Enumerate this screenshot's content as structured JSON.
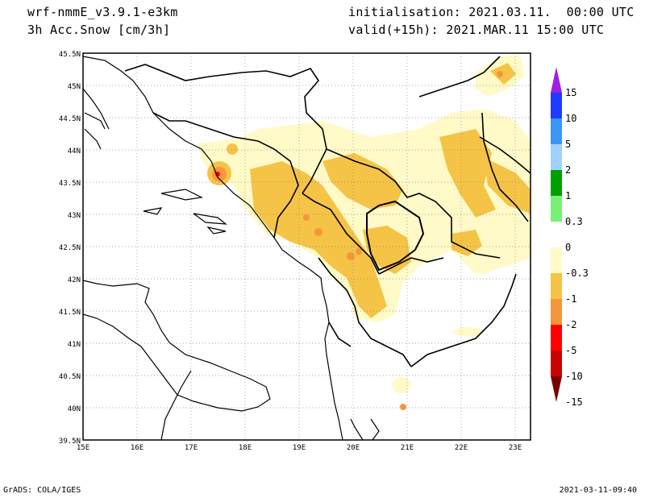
{
  "header": {
    "model": "wrf-nmmE_v3.9.1-e3km",
    "variable": "3h Acc.Snow [cm/3h]",
    "init": "initialisation: 2021.03.11.  00:00 UTC",
    "valid": "valid(+15h): 2021.MAR.11 15:00 UTC"
  },
  "footer": {
    "credit": "GrADS: COLA/IGES",
    "timestamp": "2021-03-11-09:40"
  },
  "map": {
    "lat_labels": [
      "45.5N",
      "45N",
      "44.5N",
      "44N",
      "43.5N",
      "43N",
      "42.5N",
      "42N",
      "41.5N",
      "41N",
      "40.5N",
      "40N",
      "39.5N"
    ],
    "lon_labels": [
      "15E",
      "16E",
      "17E",
      "18E",
      "19E",
      "20E",
      "21E",
      "22E",
      "23E"
    ]
  },
  "colorbar": {
    "labels": [
      "15",
      "10",
      "5",
      "2",
      "1",
      "0.3",
      "0",
      "-0.3",
      "-1",
      "-2",
      "-5",
      "-10",
      "-15"
    ],
    "colors": [
      "#a01ee0",
      "#1e3cff",
      "#3c96f5",
      "#a0d2ff",
      "#00a000",
      "#78f078",
      "#ffffff",
      "#fffac8",
      "#f5c346",
      "#f5963c",
      "#ff0000",
      "#c80000",
      "#780000"
    ]
  },
  "fill_colors": {
    "light": "#fffac8",
    "medium": "#f5c346",
    "orange": "#f5963c",
    "red": "#ff0000"
  }
}
